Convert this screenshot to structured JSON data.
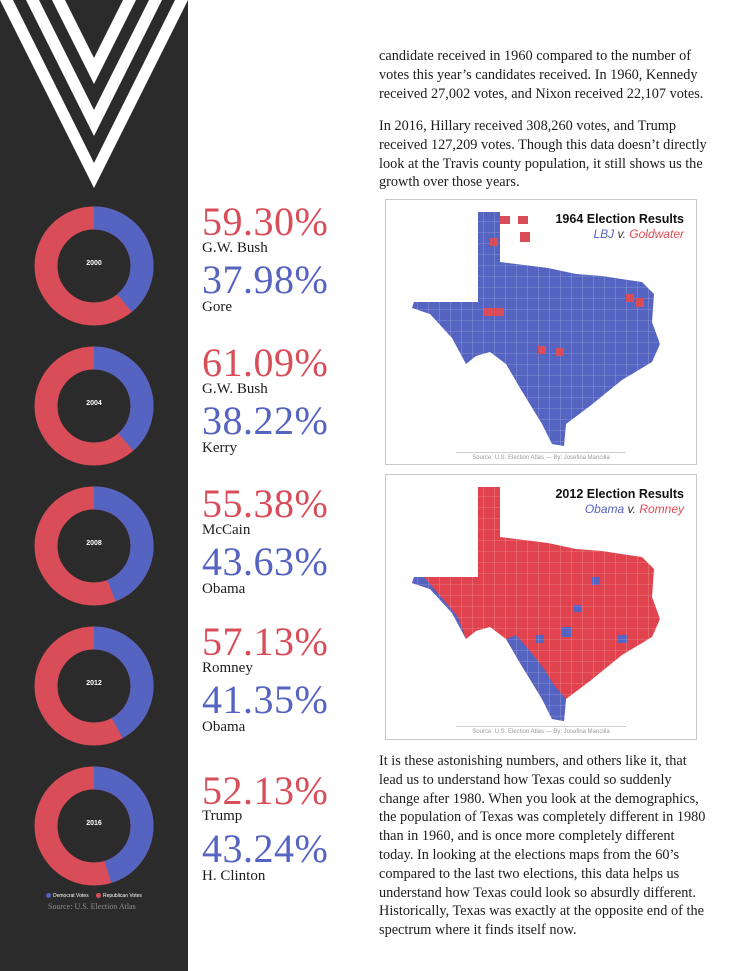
{
  "colors": {
    "democrat": "#5563c1",
    "republican": "#d84d58",
    "sidebar": "#2b2b2b"
  },
  "elections": [
    {
      "year": "2000",
      "rep_pct_text": "59.30%",
      "rep_name": "G.W. Bush",
      "dem_pct_text": "37.98%",
      "dem_name": "Gore",
      "dem_share": 0.3904
    },
    {
      "year": "2004",
      "rep_pct_text": "61.09%",
      "rep_name": "G.W. Bush",
      "dem_pct_text": "38.22%",
      "dem_name": "Kerry",
      "dem_share": 0.3849
    },
    {
      "year": "2008",
      "rep_pct_text": "55.38%",
      "rep_name": "McCain",
      "dem_pct_text": "43.63%",
      "dem_name": "Obama",
      "dem_share": 0.4407
    },
    {
      "year": "2012",
      "rep_pct_text": "57.13%",
      "rep_name": "Romney",
      "dem_pct_text": "41.35%",
      "dem_name": "Obama",
      "dem_share": 0.4199
    },
    {
      "year": "2016",
      "rep_pct_text": "52.13%",
      "rep_name": "Trump",
      "dem_pct_text": "43.24%",
      "dem_name": "H. Clinton",
      "dem_share": 0.4534
    }
  ],
  "legend": {
    "dem_label": "Democrat Votes",
    "rep_label": "Republican Votes",
    "source": "Source: U.S. Election Atlas"
  },
  "paragraphs": {
    "p1": "candidate received in 1960 compared to the number of votes this year’s candidates received. In 1960, Kennedy received 27,002 votes, and Nixon received 22,107 votes.",
    "p2": "In 2016, Hillary received 308,260 votes, and Trump received 127,209 votes. Though this data doesn’t directly look at the Travis county population, it still shows us the growth over those years.",
    "p3": "It is these astonishing numbers, and others like it, that lead us to understand how Texas could so suddenly change after 1980. When you look at the demographics, the population of Texas was completely different in 1980 than in 1960, and is once more completely different today. In looking at the elections maps from the 60’s compared to the last two elections, this data helps us understand how Texas could look so absurdly different. Historically, Texas was exactly at the opposite end of the spectrum where it finds itself now."
  },
  "maps": [
    {
      "title": "1964 Election Results",
      "dem": "LBJ",
      "sep": "v.",
      "rep": "Goldwater",
      "source": "Source: U.S. Election Atlas — By: Josefina Mancilla"
    },
    {
      "title": "2012 Election Results",
      "dem": "Obama",
      "sep": "v.",
      "rep": "Romney",
      "source": "Source: U.S. Election Atlas — By: Josefina Mancilla"
    }
  ]
}
